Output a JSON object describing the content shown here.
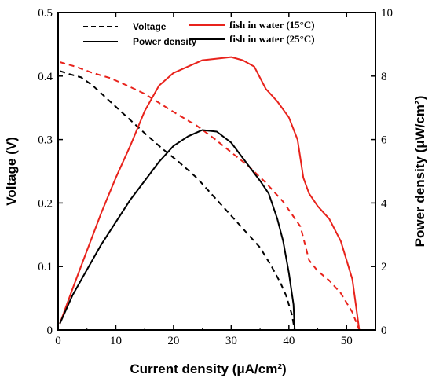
{
  "chart_data": {
    "type": "line",
    "xlabel": "Current density (μA/cm²)",
    "ylabel_left": "Voltage (V)",
    "ylabel_right": "Power density (μW/cm²)",
    "xlim": [
      0,
      55
    ],
    "ylim_left": [
      0,
      0.5
    ],
    "ylim_right": [
      0,
      10
    ],
    "x_ticks": [
      0,
      10,
      20,
      30,
      40,
      50
    ],
    "y_left_ticks": [
      0,
      0.1,
      0.2,
      0.3,
      0.4,
      0.5
    ],
    "y_left_tick_labels": [
      "0",
      "0.1",
      "0.2",
      "0.3",
      "0.4",
      "0.5"
    ],
    "y_right_ticks": [
      0,
      2,
      4,
      6,
      8,
      10
    ],
    "grid": false,
    "legend_position": "top",
    "legend": {
      "line_style": [
        {
          "label": "Voltage",
          "dash": "dashed"
        },
        {
          "label": "Power density",
          "dash": "solid"
        }
      ],
      "color": [
        {
          "label": "fish in water (15°C)",
          "color": "#e8231c"
        },
        {
          "label": "fish in water (25°C)",
          "color": "#000000"
        }
      ]
    },
    "series": [
      {
        "name": "Voltage - fish in water (15°C)",
        "axis": "left",
        "color": "#e8231c",
        "dash": "dashed",
        "x": [
          0.3,
          3,
          6,
          9,
          12,
          15,
          18,
          21,
          24,
          27,
          30,
          33,
          36,
          39,
          42,
          43.5,
          45,
          47,
          49,
          51,
          52.2
        ],
        "y": [
          0.422,
          0.415,
          0.405,
          0.397,
          0.385,
          0.372,
          0.355,
          0.338,
          0.322,
          0.302,
          0.28,
          0.258,
          0.232,
          0.202,
          0.163,
          0.11,
          0.093,
          0.078,
          0.058,
          0.028,
          0.0
        ]
      },
      {
        "name": "Voltage - fish in water (25°C)",
        "axis": "left",
        "color": "#000000",
        "dash": "dashed",
        "x": [
          0.3,
          2,
          4,
          6,
          9,
          12,
          15,
          18,
          21,
          24,
          27,
          30,
          33,
          35,
          37,
          38.5,
          39.5,
          40.5,
          41
        ],
        "y": [
          0.408,
          0.403,
          0.398,
          0.385,
          0.36,
          0.335,
          0.31,
          0.286,
          0.264,
          0.24,
          0.21,
          0.18,
          0.15,
          0.13,
          0.1,
          0.075,
          0.055,
          0.025,
          0.0
        ]
      },
      {
        "name": "Power density - fish in water (15°C)",
        "axis": "right",
        "color": "#e8231c",
        "dash": "solid",
        "x": [
          0.3,
          2.5,
          5,
          7.5,
          10,
          12.5,
          15,
          17.5,
          20,
          22.5,
          25,
          27.5,
          30,
          32,
          34,
          36,
          38,
          40,
          41.5,
          42.5,
          43.5,
          45,
          47,
          49,
          51,
          52.2
        ],
        "y": [
          0.2,
          1.3,
          2.5,
          3.7,
          4.8,
          5.8,
          6.9,
          7.7,
          8.1,
          8.3,
          8.5,
          8.55,
          8.6,
          8.5,
          8.3,
          7.6,
          7.2,
          6.7,
          6.0,
          4.8,
          4.3,
          3.9,
          3.5,
          2.8,
          1.6,
          0.0
        ]
      },
      {
        "name": "Power density - fish in water (25°C)",
        "axis": "right",
        "color": "#000000",
        "dash": "solid",
        "x": [
          0.3,
          2.5,
          5,
          7.5,
          10,
          12.5,
          15,
          17.5,
          20,
          22.5,
          25,
          27.5,
          30,
          32.5,
          35,
          36.5,
          38,
          39,
          40,
          40.8,
          41
        ],
        "y": [
          0.2,
          1.1,
          1.9,
          2.7,
          3.4,
          4.1,
          4.7,
          5.3,
          5.8,
          6.1,
          6.3,
          6.25,
          5.9,
          5.3,
          4.7,
          4.3,
          3.5,
          2.8,
          1.8,
          0.8,
          0.0
        ]
      }
    ]
  }
}
